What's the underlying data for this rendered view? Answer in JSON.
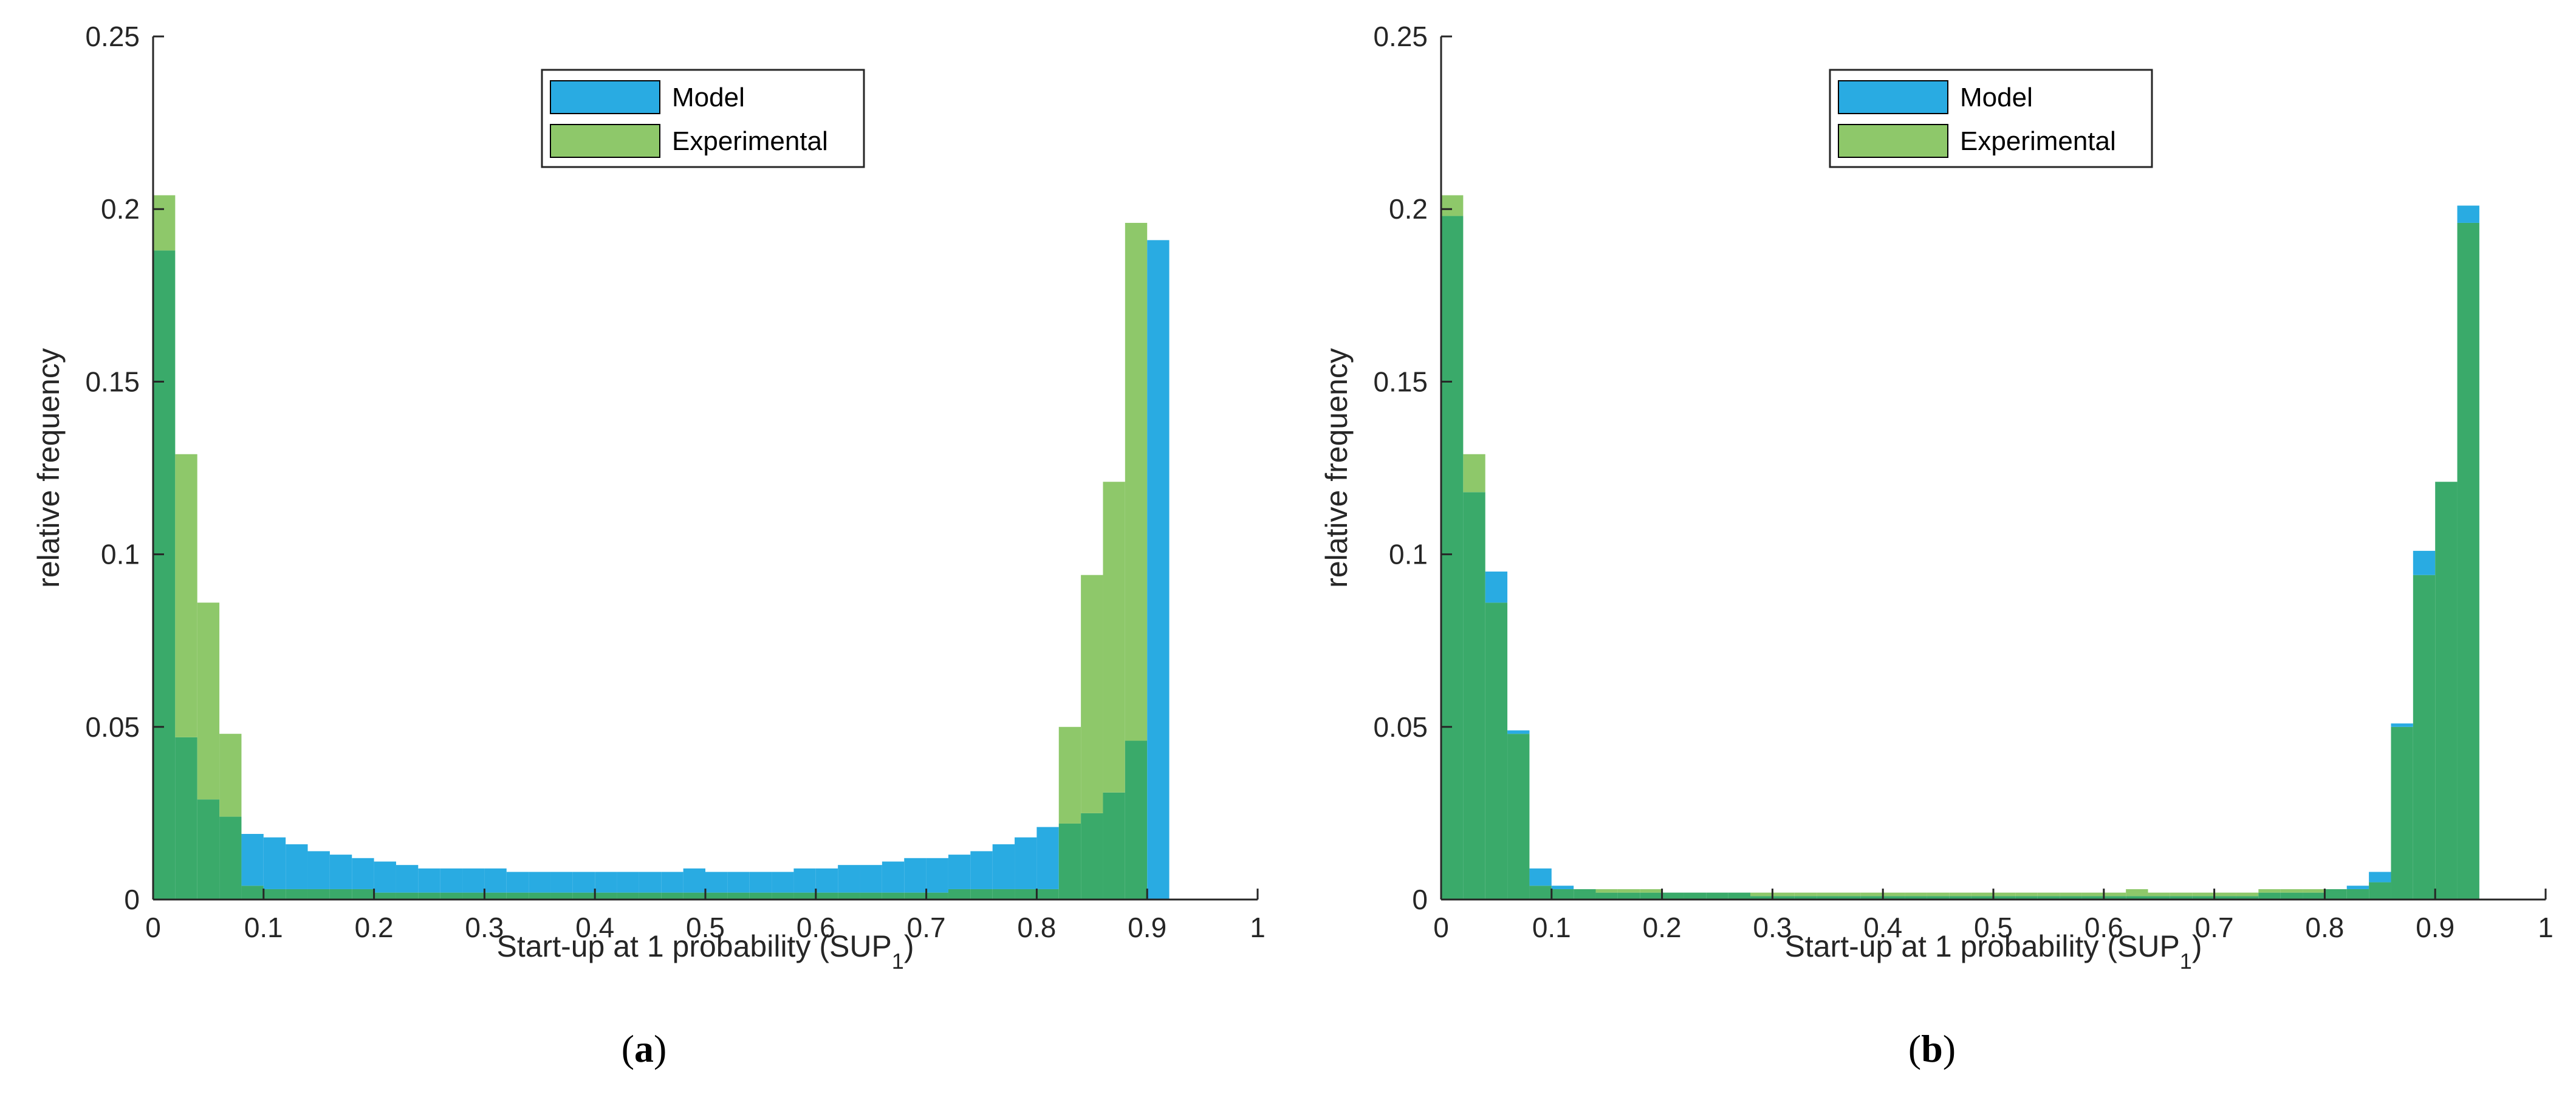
{
  "colors": {
    "model": "#29abe2",
    "experimental": "#8ec86a",
    "overlap": "#3aaa6a",
    "axis": "#262626"
  },
  "captions": {
    "a_open": "(",
    "a_letter": "a",
    "a_close": ")",
    "b_open": "(",
    "b_letter": "b",
    "b_close": ")"
  },
  "chart_data": [
    {
      "id": "a",
      "type": "histogram",
      "xlabel": "Start-up at 1 probability (SUP",
      "xlabel_sub": "1",
      "xlabel_end": ")",
      "ylabel": "relative frequency",
      "xlim": [
        0,
        1
      ],
      "ylim": [
        0,
        0.25
      ],
      "xticks": [
        "0",
        "0.1",
        "0.2",
        "0.3",
        "0.4",
        "0.5",
        "0.6",
        "0.7",
        "0.8",
        "0.9",
        "1"
      ],
      "yticks": [
        "0",
        "0.05",
        "0.1",
        "0.15",
        "0.2",
        "0.25"
      ],
      "bin_width": 0.02,
      "legend": [
        "Model",
        "Experimental"
      ],
      "series": [
        {
          "name": "Model",
          "values": [
            0.188,
            0.047,
            0.029,
            0.024,
            0.019,
            0.018,
            0.016,
            0.014,
            0.013,
            0.012,
            0.011,
            0.01,
            0.009,
            0.009,
            0.009,
            0.009,
            0.008,
            0.008,
            0.008,
            0.008,
            0.008,
            0.008,
            0.008,
            0.008,
            0.009,
            0.008,
            0.008,
            0.008,
            0.008,
            0.009,
            0.009,
            0.01,
            0.01,
            0.011,
            0.012,
            0.012,
            0.013,
            0.014,
            0.016,
            0.018,
            0.021,
            0.022,
            0.025,
            0.031,
            0.046,
            0.191,
            0.0,
            0.0,
            0.0,
            0.0
          ]
        },
        {
          "name": "Experimental",
          "values": [
            0.204,
            0.129,
            0.086,
            0.048,
            0.004,
            0.003,
            0.003,
            0.003,
            0.003,
            0.003,
            0.002,
            0.002,
            0.002,
            0.002,
            0.002,
            0.002,
            0.002,
            0.002,
            0.002,
            0.002,
            0.002,
            0.002,
            0.002,
            0.002,
            0.002,
            0.002,
            0.002,
            0.002,
            0.002,
            0.002,
            0.002,
            0.002,
            0.002,
            0.002,
            0.002,
            0.002,
            0.003,
            0.003,
            0.003,
            0.003,
            0.003,
            0.05,
            0.094,
            0.121,
            0.196,
            0.0,
            0.0,
            0.0,
            0.0,
            0.0
          ]
        }
      ]
    },
    {
      "id": "b",
      "type": "histogram",
      "xlabel": "Start-up at 1 probability (SUP",
      "xlabel_sub": "1",
      "xlabel_end": ")",
      "ylabel": "relative frequency",
      "xlim": [
        0,
        1
      ],
      "ylim": [
        0,
        0.25
      ],
      "xticks": [
        "0",
        "0.1",
        "0.2",
        "0.3",
        "0.4",
        "0.5",
        "0.6",
        "0.7",
        "0.8",
        "0.9",
        "1"
      ],
      "yticks": [
        "0",
        "0.05",
        "0.1",
        "0.15",
        "0.2",
        "0.25"
      ],
      "bin_width": 0.02,
      "legend": [
        "Model",
        "Experimental"
      ],
      "series": [
        {
          "name": "Model",
          "values": [
            0.198,
            0.118,
            0.095,
            0.049,
            0.009,
            0.004,
            0.003,
            0.002,
            0.002,
            0.002,
            0.002,
            0.002,
            0.002,
            0.002,
            0.001,
            0.001,
            0.001,
            0.001,
            0.001,
            0.001,
            0.001,
            0.001,
            0.001,
            0.001,
            0.001,
            0.001,
            0.001,
            0.001,
            0.001,
            0.001,
            0.001,
            0.001,
            0.001,
            0.001,
            0.001,
            0.001,
            0.001,
            0.002,
            0.002,
            0.002,
            0.003,
            0.004,
            0.008,
            0.051,
            0.101,
            0.121,
            0.201,
            0.0,
            0.0,
            0.0
          ]
        },
        {
          "name": "Experimental",
          "values": [
            0.204,
            0.129,
            0.086,
            0.048,
            0.004,
            0.003,
            0.003,
            0.003,
            0.003,
            0.003,
            0.002,
            0.002,
            0.002,
            0.002,
            0.002,
            0.002,
            0.002,
            0.002,
            0.002,
            0.002,
            0.002,
            0.002,
            0.002,
            0.002,
            0.002,
            0.002,
            0.002,
            0.002,
            0.002,
            0.002,
            0.002,
            0.003,
            0.002,
            0.002,
            0.002,
            0.002,
            0.002,
            0.003,
            0.003,
            0.003,
            0.003,
            0.003,
            0.005,
            0.05,
            0.094,
            0.121,
            0.196,
            0.0,
            0.0,
            0.0
          ]
        }
      ]
    }
  ]
}
